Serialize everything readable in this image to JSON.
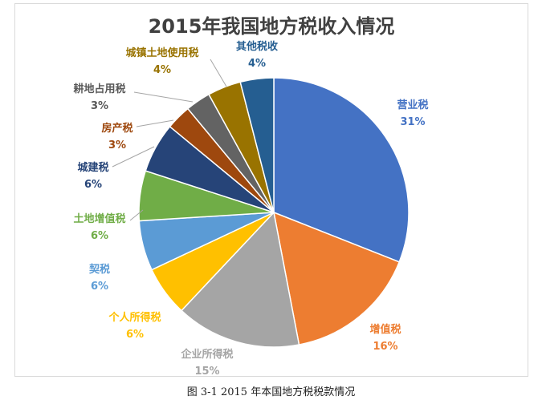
{
  "chart_data": {
    "type": "pie",
    "title": "2015年我国地方税收入情况",
    "slices": [
      {
        "name": "营业税",
        "value": 31,
        "label": "31%",
        "color": "#4472C4",
        "label_color": "#4472C4"
      },
      {
        "name": "增值税",
        "value": 16,
        "label": "16%",
        "color": "#ED7D31",
        "label_color": "#ED7D31"
      },
      {
        "name": "企业所得税",
        "value": 15,
        "label": "15%",
        "color": "#A5A5A5",
        "label_color": "#A5A5A5"
      },
      {
        "name": "个人所得税",
        "value": 6,
        "label": "6%",
        "color": "#FFC000",
        "label_color": "#FFC000"
      },
      {
        "name": "契税",
        "value": 6,
        "label": "6%",
        "color": "#5B9BD5",
        "label_color": "#5B9BD5"
      },
      {
        "name": "土地增值税",
        "value": 6,
        "label": "6%",
        "color": "#70AD47",
        "label_color": "#70AD47"
      },
      {
        "name": "城建税",
        "value": 6,
        "label": "6%",
        "color": "#264478",
        "label_color": "#264478"
      },
      {
        "name": "房产税",
        "value": 3,
        "label": "3%",
        "color": "#9E480E",
        "label_color": "#9E480E"
      },
      {
        "name": "耕地占用税",
        "value": 3,
        "label": "3%",
        "color": "#636363",
        "label_color": "#595959"
      },
      {
        "name": "城镇土地使用税",
        "value": 4,
        "label": "4%",
        "color": "#997300",
        "label_color": "#997300"
      },
      {
        "name": "其他税收",
        "value": 4,
        "label": "4%",
        "color": "#255E91",
        "label_color": "#255E91"
      }
    ]
  },
  "caption": "图 3-1   2015 年本国地方税税款情况"
}
